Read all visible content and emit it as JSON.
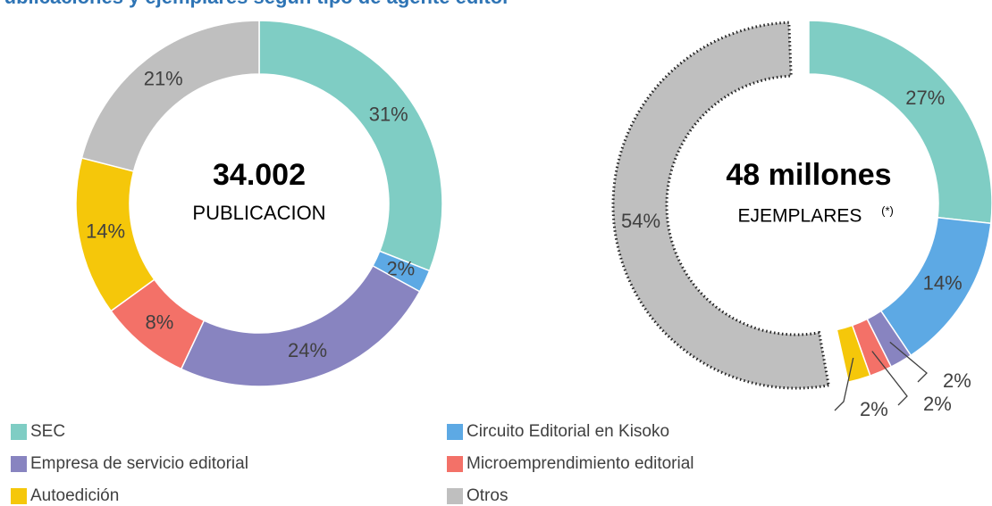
{
  "title": "Publicaciones y ejemplares según tipo de agente editor",
  "chart_data": [
    {
      "type": "pie",
      "donut": true,
      "center_value": "34.002",
      "center_label": "PUBLICACION",
      "categories": [
        "SEC",
        "Circuito Editorial en Kisoko",
        "Empresa de servicio editorial",
        "Microemprendimiento editorial",
        "Autoedición",
        "Otros"
      ],
      "values": [
        31,
        2,
        24,
        8,
        14,
        21
      ],
      "value_labels": [
        "31%",
        "2%",
        "24%",
        "8%",
        "14%",
        "21%"
      ],
      "colors": [
        "#7fcdc4",
        "#5da9e4",
        "#8884c0",
        "#f37168",
        "#f5c70a",
        "#bfbfbf"
      ]
    },
    {
      "type": "pie",
      "donut": true,
      "center_value": "48 millones",
      "center_label": "EJEMPLARES",
      "center_note": "(*)",
      "categories": [
        "SEC",
        "Circuito Editorial en Kisoko",
        "Empresa de servicio editorial",
        "Microemprendimiento editorial",
        "Autoedición",
        "Otros"
      ],
      "values": [
        27,
        14,
        2,
        2,
        2,
        54
      ],
      "value_labels": [
        "27%",
        "14%",
        "2%",
        "2%",
        "2%",
        "54%"
      ],
      "colors": [
        "#7fcdc4",
        "#5da9e4",
        "#8884c0",
        "#f37168",
        "#f5c70a",
        "#bfbfbf"
      ],
      "exploded": "Otros"
    }
  ]
}
